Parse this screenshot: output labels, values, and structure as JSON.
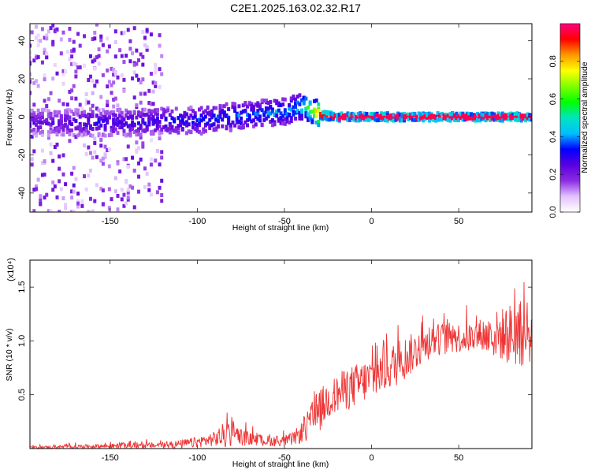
{
  "title": "C2E1.2025.163.02.32.R17",
  "chart_data": [
    {
      "type": "heatmap",
      "title": "C2E1.2025.163.02.32.R17",
      "xlabel": "Height of straight line (km)",
      "ylabel": "Frequency (Hz)",
      "xlim": [
        -196,
        92
      ],
      "ylim": [
        -50,
        49
      ],
      "xticks": [
        -150,
        -100,
        -50,
        0,
        50
      ],
      "yticks": [
        -40,
        -20,
        0,
        20,
        40
      ],
      "colorbar": {
        "label": "Normalized spectral amplitude",
        "range": [
          0.0,
          1.0
        ],
        "ticks": [
          0.0,
          0.2,
          0.4,
          0.6,
          0.8
        ],
        "colors": [
          "#ffffff",
          "#e2c2ff",
          "#8a2be2",
          "#5a00e0",
          "#0000ff",
          "#00bfff",
          "#00e5c0",
          "#00ff00",
          "#7fff00",
          "#ffff00",
          "#ff9900",
          "#ff0000",
          "#ff0080"
        ]
      },
      "ridge": {
        "x": [
          -180,
          -160,
          -140,
          -120,
          -100,
          -80,
          -60,
          -50,
          -45,
          -38,
          -30,
          -20,
          0,
          20,
          50,
          92
        ],
        "frequency": [
          -3,
          -3,
          -3,
          -2,
          -2,
          0,
          2,
          3,
          4,
          6,
          1,
          0,
          0,
          0,
          0,
          0
        ],
        "amplitude": [
          0.25,
          0.3,
          0.3,
          0.32,
          0.35,
          0.38,
          0.4,
          0.42,
          0.45,
          0.55,
          0.9,
          0.97,
          0.97,
          0.97,
          0.97,
          0.97
        ]
      }
    },
    {
      "type": "line",
      "xlabel": "Height of straight line (km)",
      "ylabel": "SNR (10 * v/v)",
      "y_multiplier": "(x10⁴)",
      "xlim": [
        -196,
        92
      ],
      "ylim": [
        0,
        1.75
      ],
      "xticks": [
        -150,
        -100,
        -50,
        0,
        50
      ],
      "yticks": [
        0.5,
        1.0,
        1.5
      ],
      "ytick_labels": [
        "0.5",
        "1.0",
        "1.5"
      ],
      "series": [
        {
          "color": "#ee3333",
          "x": [
            -196,
            -180,
            -160,
            -140,
            -120,
            -110,
            -100,
            -90,
            -85,
            -82,
            -78,
            -70,
            -60,
            -50,
            -45,
            -40,
            -36,
            -33,
            -30,
            -25,
            -20,
            -15,
            -10,
            -5,
            0,
            5,
            10,
            15,
            20,
            25,
            30,
            35,
            40,
            45,
            50,
            55,
            60,
            65,
            70,
            75,
            80,
            85,
            90,
            92
          ],
          "mean": [
            0.01,
            0.015,
            0.02,
            0.025,
            0.03,
            0.04,
            0.06,
            0.09,
            0.12,
            0.14,
            0.12,
            0.09,
            0.07,
            0.07,
            0.09,
            0.15,
            0.22,
            0.28,
            0.35,
            0.45,
            0.5,
            0.55,
            0.58,
            0.62,
            0.65,
            0.7,
            0.75,
            0.8,
            0.85,
            0.9,
            0.95,
            1.0,
            1.02,
            1.02,
            1.03,
            1.03,
            1.04,
            1.05,
            1.05,
            1.06,
            1.06,
            1.05,
            1.03,
            1.0
          ],
          "spread": [
            0.01,
            0.015,
            0.02,
            0.025,
            0.03,
            0.04,
            0.05,
            0.07,
            0.12,
            0.15,
            0.1,
            0.06,
            0.05,
            0.05,
            0.06,
            0.1,
            0.15,
            0.2,
            0.2,
            0.18,
            0.18,
            0.2,
            0.2,
            0.2,
            0.2,
            0.2,
            0.2,
            0.22,
            0.2,
            0.18,
            0.15,
            0.15,
            0.15,
            0.15,
            0.14,
            0.14,
            0.15,
            0.18,
            0.22,
            0.25,
            0.3,
            0.3,
            0.25,
            0.2
          ]
        }
      ]
    }
  ]
}
